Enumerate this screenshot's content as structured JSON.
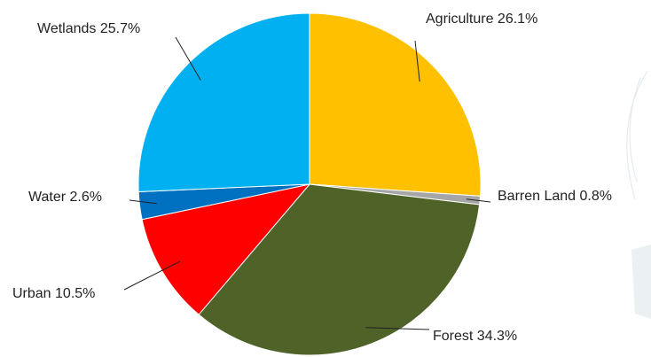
{
  "chart_data": {
    "type": "pie",
    "title": "",
    "start_angle_deg": 0,
    "direction": "clockwise",
    "slices": [
      {
        "name": "Agriculture",
        "value": 26.1,
        "label": "Agriculture 26.1%",
        "color": "#ffc000"
      },
      {
        "name": "Barren Land",
        "value": 0.8,
        "label": "Barren Land 0.8%",
        "color": "#a6a6a6"
      },
      {
        "name": "Forest",
        "value": 34.3,
        "label": "Forest 34.3%",
        "color": "#4f6228"
      },
      {
        "name": "Urban",
        "value": 10.5,
        "label": "Urban 10.5%",
        "color": "#ff0000"
      },
      {
        "name": "Water",
        "value": 2.6,
        "label": "Water 2.6%",
        "color": "#0070c0"
      },
      {
        "name": "Wetlands",
        "value": 25.7,
        "label": "Wetlands 25.7%",
        "color": "#00b0f0"
      }
    ],
    "legend": "none",
    "labels": "outside with leader lines"
  }
}
